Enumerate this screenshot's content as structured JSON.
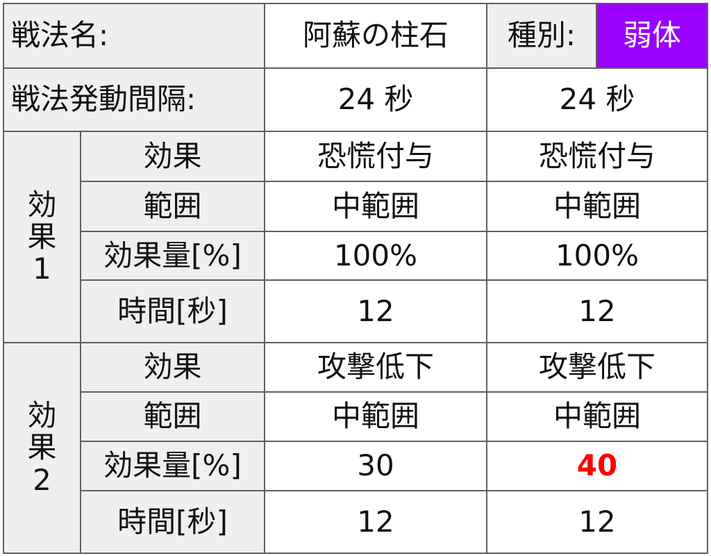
{
  "header": {
    "name_label": "戦法名:",
    "name_value": "阿蘇の柱石",
    "type_label": "種別:",
    "type_value": "弱体",
    "type_color": "#9900ff"
  },
  "interval": {
    "label": "戦法発動間隔:",
    "values": [
      "24 秒",
      "24 秒"
    ]
  },
  "groups": [
    {
      "label": [
        "効",
        "果",
        "1"
      ],
      "rows": [
        {
          "label": "効果",
          "values": [
            "恐慌付与",
            "恐慌付与"
          ]
        },
        {
          "label": "範囲",
          "values": [
            "中範囲",
            "中範囲"
          ]
        },
        {
          "label": "効果量[%]",
          "values": [
            "100%",
            "100%"
          ]
        },
        {
          "label": "時間[秒]",
          "values": [
            "12",
            "12"
          ]
        }
      ]
    },
    {
      "label": [
        "効",
        "果",
        "2"
      ],
      "rows": [
        {
          "label": "効果",
          "values": [
            "攻撃低下",
            "攻撃低下"
          ]
        },
        {
          "label": "範囲",
          "values": [
            "中範囲",
            "中範囲"
          ]
        },
        {
          "label": "効果量[%]",
          "values": [
            "30",
            "40"
          ]
        },
        {
          "label": "時間[秒]",
          "values": [
            "12",
            "12"
          ]
        }
      ]
    }
  ],
  "colors": {
    "header_bg": "#efefef",
    "border": "#5f5f5f",
    "highlight": "#ff0000"
  }
}
